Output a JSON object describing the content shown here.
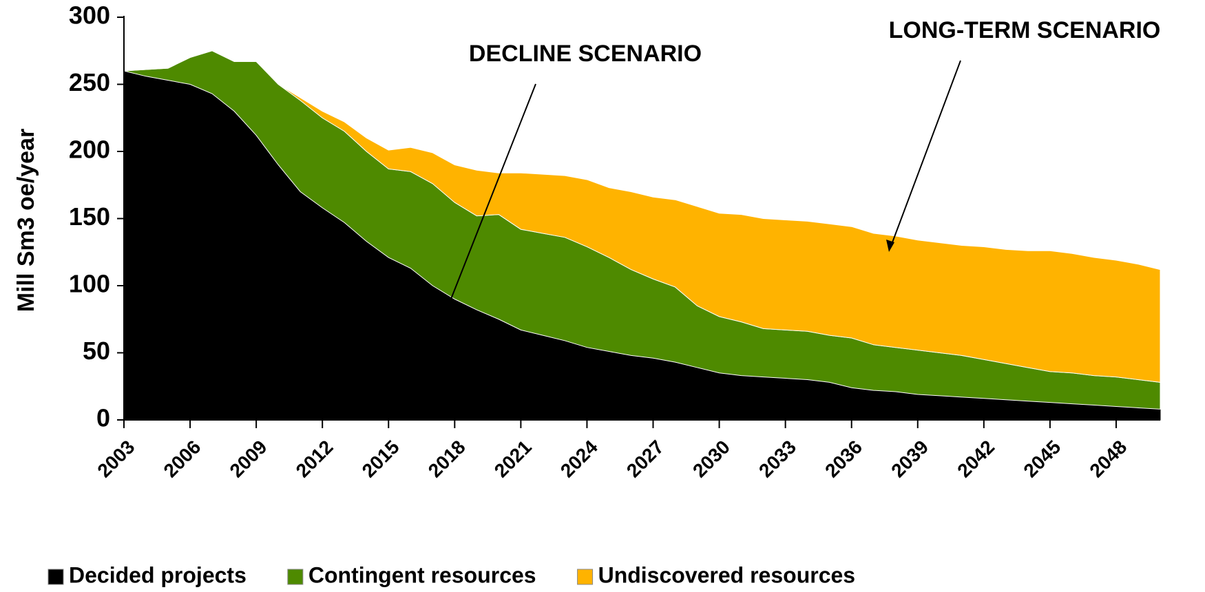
{
  "chart_data": {
    "type": "stacked-area",
    "y_label": "Mill Sm3 oe/year",
    "x": [
      2003,
      2004,
      2005,
      2006,
      2007,
      2008,
      2009,
      2010,
      2011,
      2012,
      2013,
      2014,
      2015,
      2016,
      2017,
      2018,
      2019,
      2020,
      2021,
      2022,
      2023,
      2024,
      2025,
      2026,
      2027,
      2028,
      2029,
      2030,
      2031,
      2032,
      2033,
      2034,
      2035,
      2036,
      2037,
      2038,
      2039,
      2040,
      2041,
      2042,
      2043,
      2044,
      2045,
      2046,
      2047,
      2048,
      2049,
      2050
    ],
    "xlim": [
      2003,
      2050
    ],
    "xticks": [
      2003,
      2006,
      2009,
      2012,
      2015,
      2018,
      2021,
      2024,
      2027,
      2030,
      2033,
      2036,
      2039,
      2042,
      2045,
      2048
    ],
    "ylim": [
      0,
      300
    ],
    "yticks": [
      0,
      50,
      100,
      150,
      200,
      250,
      300
    ],
    "series": [
      {
        "name": "Decided projects",
        "color": "#000000",
        "values": [
          260,
          256,
          253,
          250,
          243,
          230,
          212,
          190,
          170,
          158,
          147,
          133,
          121,
          113,
          100,
          90,
          82,
          75,
          67,
          63,
          59,
          54,
          51,
          48,
          46,
          43,
          39,
          35,
          33,
          32,
          31,
          30,
          28,
          24,
          22,
          21,
          19,
          18,
          17,
          16,
          15,
          14,
          13,
          12,
          11,
          10,
          9,
          8
        ]
      },
      {
        "name": "Contingent resources",
        "color": "#4e8a00",
        "values": [
          0,
          5,
          9,
          20,
          32,
          37,
          55,
          60,
          68,
          67,
          68,
          67,
          66,
          72,
          76,
          72,
          70,
          78,
          75,
          76,
          77,
          75,
          70,
          64,
          59,
          56,
          46,
          42,
          40,
          36,
          36,
          36,
          35,
          37,
          34,
          33,
          33,
          32,
          31,
          29,
          27,
          25,
          23,
          23,
          22,
          22,
          21,
          20
        ]
      },
      {
        "name": "Undiscovered resources",
        "color": "#ffb300",
        "values": [
          0,
          0,
          0,
          0,
          0,
          0,
          0,
          0,
          2,
          5,
          7,
          10,
          14,
          18,
          23,
          28,
          34,
          31,
          42,
          44,
          46,
          50,
          52,
          58,
          61,
          65,
          74,
          77,
          80,
          82,
          82,
          82,
          83,
          83,
          83,
          83,
          82,
          82,
          82,
          84,
          85,
          87,
          90,
          89,
          88,
          87,
          86,
          84
        ]
      }
    ],
    "annotations": [
      "DECLINE SCENARIO",
      "LONG-TERM SCENARIO"
    ]
  }
}
